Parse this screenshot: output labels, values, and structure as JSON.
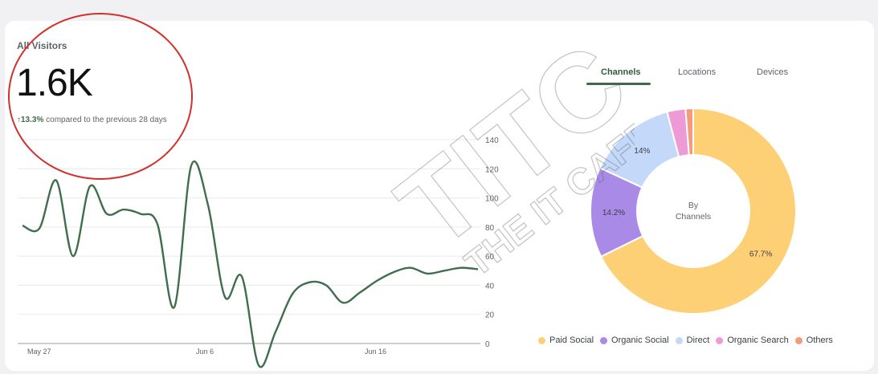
{
  "visitors": {
    "title": "All Visitors",
    "value": "1.6K",
    "change_arrow": "↑",
    "change_pct": "13.3%",
    "change_text": "compared to the previous 28 days"
  },
  "tabs": [
    {
      "label": "Channels",
      "active": true
    },
    {
      "label": "Locations",
      "active": false
    },
    {
      "label": "Devices",
      "active": false
    }
  ],
  "watermark": {
    "brand": "TITC",
    "tagline": "THE IT CAFE"
  },
  "chart_data": [
    {
      "type": "line",
      "x_tick_labels": [
        "May 27",
        "Jun 6",
        "Jun 16"
      ],
      "x": [
        "May 27",
        "May 28",
        "May 29",
        "May 30",
        "May 31",
        "Jun 1",
        "Jun 2",
        "Jun 3",
        "Jun 4",
        "Jun 5",
        "Jun 6",
        "Jun 7",
        "Jun 8",
        "Jun 9",
        "Jun 10",
        "Jun 11",
        "Jun 12",
        "Jun 13",
        "Jun 14",
        "Jun 15",
        "Jun 16",
        "Jun 17",
        "Jun 18",
        "Jun 19",
        "Jun 20",
        "Jun 21",
        "Jun 22",
        "Jun 23"
      ],
      "series": [
        {
          "values": [
            81,
            79,
            112,
            60,
            108,
            89,
            92,
            89,
            82,
            25,
            122,
            95,
            32,
            46,
            -15,
            8,
            34,
            42,
            40,
            28,
            35,
            43,
            49,
            52,
            48,
            50,
            52,
            51
          ]
        }
      ],
      "y_ticks": [
        0,
        20,
        40,
        60,
        80,
        100,
        120,
        140
      ],
      "ylim": [
        0,
        150
      ],
      "y_axis_side": "right",
      "grid": true,
      "line_color": "#3f6e4c"
    },
    {
      "type": "pie",
      "donut": true,
      "center_label": "By\nChannels",
      "slices": [
        {
          "name": "Paid Social",
          "value": 67.7,
          "label": "67.7%",
          "color": "#fdd076"
        },
        {
          "name": "Organic Social",
          "value": 14.2,
          "label": "14.2%",
          "color": "#a98ae6"
        },
        {
          "name": "Direct",
          "value": 14.0,
          "label": "14%",
          "color": "#c4d8fa"
        },
        {
          "name": "Organic Search",
          "value": 2.9,
          "label": "",
          "color": "#ee9ad6"
        },
        {
          "name": "Others",
          "value": 1.2,
          "label": "",
          "color": "#f59b7c"
        }
      ],
      "legend_position": "bottom"
    }
  ]
}
